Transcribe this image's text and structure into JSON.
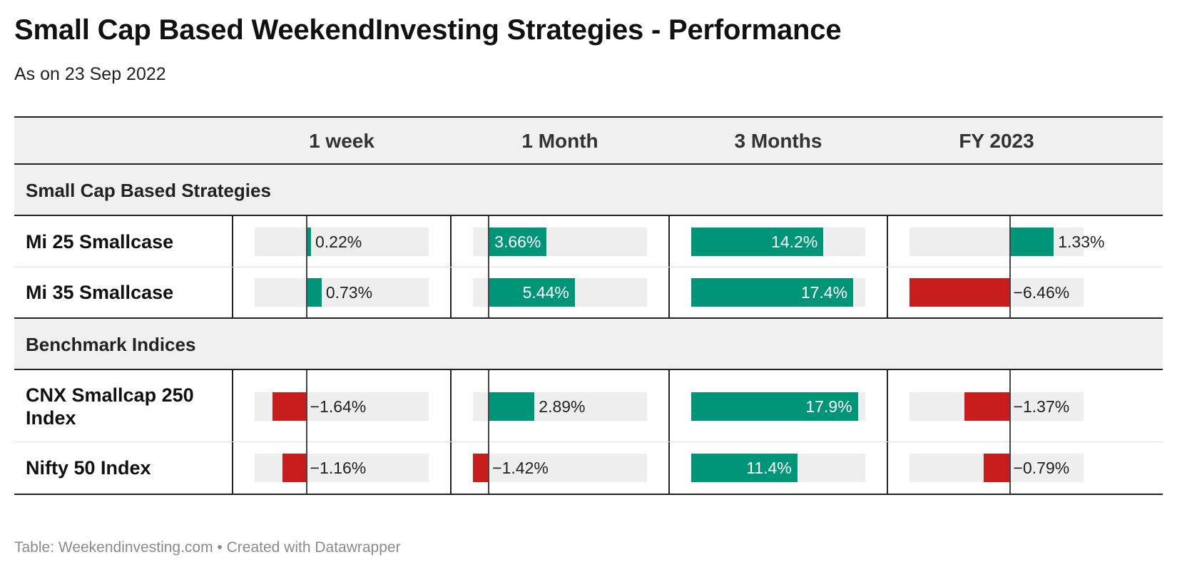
{
  "title": "Small Cap Based WeekendInvesting Strategies - Performance",
  "subtitle": "As on 23 Sep 2022",
  "footer": "Table: Weekendinvesting.com • Created with Datawrapper",
  "colors": {
    "positive": "#009479",
    "negative": "#c71e1d",
    "bar_background": "#eeeeee",
    "header_background": "#f0f0f0"
  },
  "chart_data": {
    "type": "table",
    "columns": [
      "1 week",
      "1 Month",
      "3 Months",
      "FY 2023"
    ],
    "column_ranges": [
      [
        -2.5,
        5.9
      ],
      [
        -1,
        10
      ],
      [
        0,
        18.7
      ],
      [
        -3.03,
        2.23
      ]
    ],
    "groups": [
      {
        "name": "Small Cap Based Strategies",
        "rows": [
          {
            "name": "Mi 25 Smallcase",
            "values": [
              0.22,
              3.66,
              14.2,
              1.33
            ],
            "labels": [
              "0.22%",
              "3.66%",
              "14.2%",
              "1.33%"
            ]
          },
          {
            "name": "Mi 35 Smallcase",
            "values": [
              0.73,
              5.44,
              17.4,
              -6.46
            ],
            "labels": [
              "0.73%",
              "5.44%",
              "17.4%",
              "−6.46%"
            ]
          }
        ]
      },
      {
        "name": "Benchmark Indices",
        "rows": [
          {
            "name": "CNX Smallcap 250 Index",
            "values": [
              -1.64,
              2.89,
              17.9,
              -1.37
            ],
            "labels": [
              "−1.64%",
              "2.89%",
              "17.9%",
              "−1.37%"
            ]
          },
          {
            "name": "Nifty 50 Index",
            "values": [
              -1.16,
              -1.42,
              11.4,
              -0.79
            ],
            "labels": [
              "−1.16%",
              "−1.42%",
              "11.4%",
              "−0.79%"
            ]
          }
        ]
      }
    ]
  }
}
